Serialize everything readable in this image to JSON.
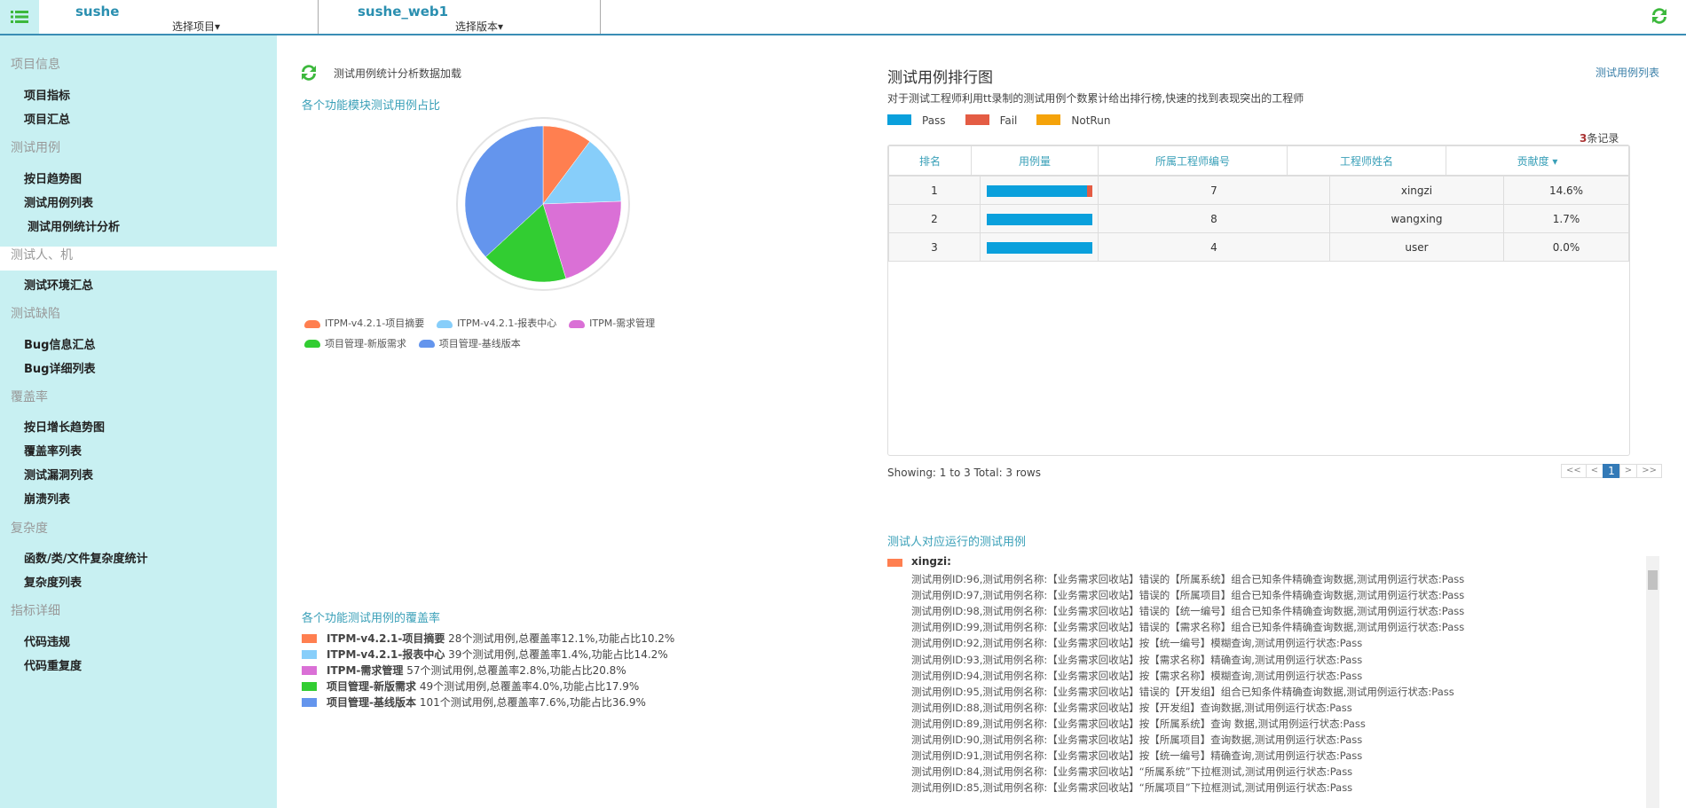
{
  "header": {
    "project": "sushe",
    "select_project": "选择项目▾",
    "version": "sushe_web1",
    "select_version": "选择版本▾"
  },
  "sidebar": {
    "groups": [
      {
        "label": "项目信息",
        "items": [
          "项目指标",
          "项目汇总"
        ]
      },
      {
        "label": "测试用例",
        "items": [
          "按日趋势图",
          "测试用例列表",
          "测试用例统计分析"
        ]
      },
      {
        "label": "测试人、机",
        "items": [
          "测试环境汇总"
        ]
      },
      {
        "label": "测试缺陷",
        "items": [
          "Bug信息汇总",
          "Bug详细列表"
        ]
      },
      {
        "label": "覆盖率",
        "items": [
          "按日增长趋势图",
          "覆盖率列表",
          "测试漏洞列表",
          "崩溃列表"
        ]
      },
      {
        "label": "复杂度",
        "items": [
          "函数/类/文件复杂度统计",
          "复杂度列表"
        ]
      },
      {
        "label": "指标详细",
        "items": [
          "代码违规",
          "代码重复度"
        ]
      }
    ],
    "active": "测试用例统计分析"
  },
  "main": {
    "load_title": "测试用例统计分析数据加载",
    "pie_title": "各个功能模块测试用例占比",
    "coverage_title": "各个功能测试用例的覆盖率",
    "coverage": [
      {
        "name": "ITPM-v4.2.1-项目摘要",
        "desc": "28个测试用例,总覆盖率12.1%,功能占比10.2%"
      },
      {
        "name": "ITPM-v4.2.1-报表中心",
        "desc": "39个测试用例,总覆盖率1.4%,功能占比14.2%"
      },
      {
        "name": "ITPM-需求管理",
        "desc": "57个测试用例,总覆盖率2.8%,功能占比20.8%"
      },
      {
        "name": "项目管理-新版需求",
        "desc": "49个测试用例,总覆盖率4.0%,功能占比17.9%"
      },
      {
        "name": "项目管理-基线版本",
        "desc": "101个测试用例,总覆盖率7.6%,功能占比36.9%"
      }
    ]
  },
  "chart_data": {
    "type": "pie",
    "title": "各个功能模块测试用例占比",
    "categories": [
      "ITPM-v4.2.1-项目摘要",
      "ITPM-v4.2.1-报表中心",
      "ITPM-需求管理",
      "项目管理-新版需求",
      "项目管理-基线版本"
    ],
    "values": [
      28,
      39,
      57,
      49,
      101
    ],
    "colors": [
      "#ff7f50",
      "#87cefa",
      "#da70d6",
      "#32cd32",
      "#6495ed"
    ],
    "legend": "bottom"
  },
  "ranking": {
    "title": "测试用例排行图",
    "link": "测试用例列表",
    "desc": "对于测试工程师利用tt录制的测试用例个数累计给出排行榜,快速的找到表现突出的工程师",
    "legend": [
      {
        "label": "Pass",
        "color": "#0aa0dc"
      },
      {
        "label": "Fail",
        "color": "#e45c44"
      },
      {
        "label": "NotRun",
        "color": "#f5a30a"
      }
    ],
    "count_num": "3",
    "count_label": "条记录",
    "columns": [
      "排名",
      "用例量",
      "所属工程师编号",
      "工程师姓名",
      "贡献度 ▾"
    ],
    "rows": [
      {
        "rank": "1",
        "pass": 0.95,
        "fail": 0.05,
        "id": "7",
        "name": "xingzi",
        "contrib": "14.6%"
      },
      {
        "rank": "2",
        "pass": 1,
        "fail": 0,
        "id": "8",
        "name": "wangxing",
        "contrib": "1.7%"
      },
      {
        "rank": "3",
        "pass": 1,
        "fail": 0,
        "id": "4",
        "name": "user",
        "contrib": "0.0%"
      }
    ],
    "showing": "Showing: 1 to 3 Total: 3 rows",
    "pager": [
      "<<",
      "<",
      "1",
      ">",
      ">>"
    ]
  },
  "runs": {
    "title": "测试人对应运行的测试用例",
    "tester": "xingzi:",
    "tester_color": "#ff7f50",
    "lines": [
      "测试用例ID:96,测试用例名称:【业务需求回收站】错误的【所属系统】组合已知条件精确查询数据,测试用例运行状态:Pass",
      "测试用例ID:97,测试用例名称:【业务需求回收站】错误的【所属项目】组合已知条件精确查询数据,测试用例运行状态:Pass",
      "测试用例ID:98,测试用例名称:【业务需求回收站】错误的【统一编号】组合已知条件精确查询数据,测试用例运行状态:Pass",
      "测试用例ID:99,测试用例名称:【业务需求回收站】错误的【需求名称】组合已知条件精确查询数据,测试用例运行状态:Pass",
      "测试用例ID:92,测试用例名称:【业务需求回收站】按【统一编号】模糊查询,测试用例运行状态:Pass",
      "测试用例ID:93,测试用例名称:【业务需求回收站】按【需求名称】精确查询,测试用例运行状态:Pass",
      "测试用例ID:94,测试用例名称:【业务需求回收站】按【需求名称】模糊查询,测试用例运行状态:Pass",
      "测试用例ID:95,测试用例名称:【业务需求回收站】错误的【开发组】组合已知条件精确查询数据,测试用例运行状态:Pass",
      "测试用例ID:88,测试用例名称:【业务需求回收站】按【开发组】查询数据,测试用例运行状态:Pass",
      "测试用例ID:89,测试用例名称:【业务需求回收站】按【所属系统】查询 数据,测试用例运行状态:Pass",
      "测试用例ID:90,测试用例名称:【业务需求回收站】按【所属项目】查询数据,测试用例运行状态:Pass",
      "测试用例ID:91,测试用例名称:【业务需求回收站】按【统一编号】精确查询,测试用例运行状态:Pass",
      "测试用例ID:84,测试用例名称:【业务需求回收站】“所属系统”下拉框测试,测试用例运行状态:Pass",
      "测试用例ID:85,测试用例名称:【业务需求回收站】“所属项目”下拉框测试,测试用例运行状态:Pass"
    ]
  }
}
